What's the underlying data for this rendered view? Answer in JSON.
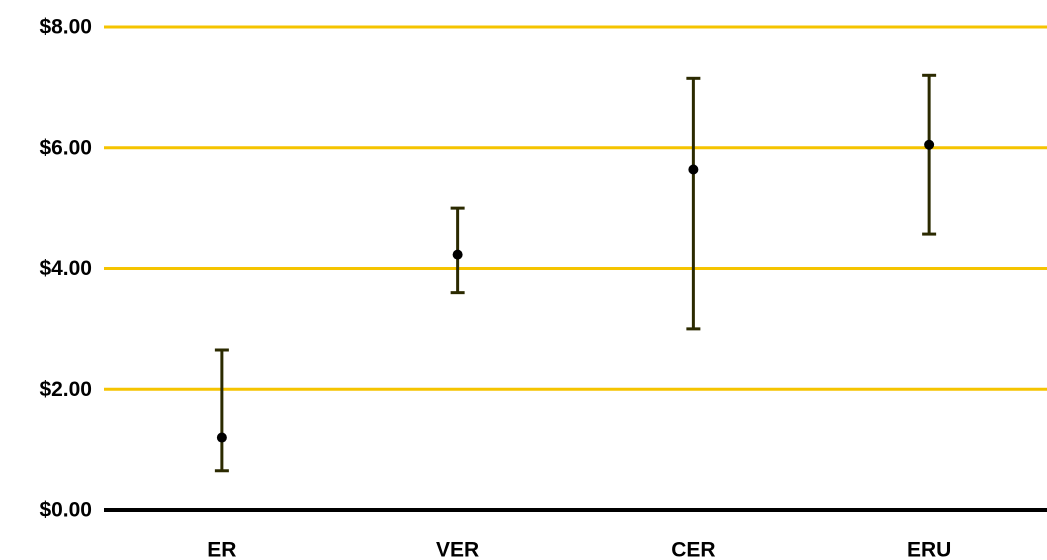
{
  "chart_data": {
    "type": "scatter",
    "chart_style": "dot-with-error-bars",
    "categories": [
      "ER",
      "VER",
      "CER",
      "ERU"
    ],
    "values": [
      1.2,
      4.23,
      5.64,
      6.05
    ],
    "error_low": [
      0.65,
      3.6,
      3.0,
      4.57
    ],
    "error_high": [
      2.65,
      5.0,
      7.15,
      7.2
    ],
    "y_tick_labels": [
      "$0.00",
      "$2.00",
      "$4.00",
      "$6.00",
      "$8.00"
    ],
    "y_ticks": [
      0,
      2,
      4,
      6,
      8
    ],
    "ylim": [
      0,
      8
    ],
    "title": "",
    "xlabel": "",
    "ylabel": "",
    "grid": true,
    "legend": "none",
    "colors": {
      "gridline": "#f5c400",
      "baseline": "#000000",
      "error_bar": "#2b2a00",
      "point": "#000000"
    }
  }
}
